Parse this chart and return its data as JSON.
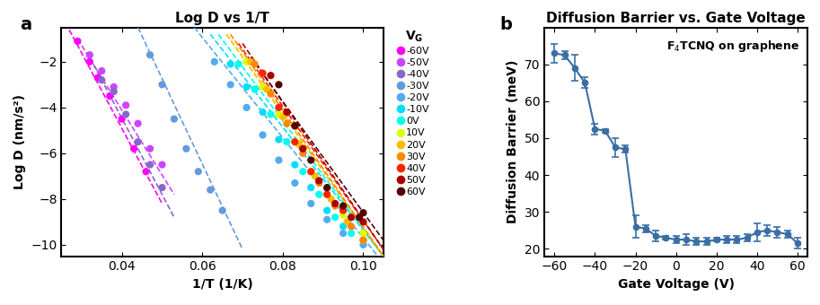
{
  "panel_a": {
    "title": "Log D vs 1/T",
    "xlabel": "1/T (1/K)",
    "ylabel": "Log D (nm/s²)",
    "xlim": [
      0.025,
      0.105
    ],
    "ylim": [
      -10.5,
      -0.5
    ],
    "xticks": [
      0.04,
      0.06,
      0.08,
      0.1
    ],
    "yticks": [
      -10,
      -8,
      -6,
      -4,
      -2
    ],
    "series": [
      {
        "label": "-60V",
        "color": "#FF00FF",
        "x": [
          0.029,
          0.032,
          0.034,
          0.037,
          0.04,
          0.043,
          0.046
        ],
        "y": [
          -1.1,
          -2.0,
          -2.7,
          -3.5,
          -4.5,
          -5.8,
          -6.8
        ],
        "fit_x": [
          0.026,
          0.05
        ],
        "fit_y": [
          -0.3,
          -8.2
        ]
      },
      {
        "label": "-50V",
        "color": "#CC44FF",
        "x": [
          0.032,
          0.035,
          0.038,
          0.041,
          0.044,
          0.047,
          0.05
        ],
        "y": [
          -1.7,
          -2.4,
          -3.1,
          -3.9,
          -4.7,
          -5.8,
          -6.5
        ],
        "fit_x": [
          0.029,
          0.053
        ],
        "fit_y": [
          -1.0,
          -7.8
        ]
      },
      {
        "label": "-40V",
        "color": "#8866CC",
        "x": [
          0.035,
          0.038,
          0.041,
          0.044,
          0.047,
          0.05
        ],
        "y": [
          -2.8,
          -3.3,
          -4.3,
          -5.5,
          -6.5,
          -7.5
        ],
        "fit_x": [
          0.032,
          0.053
        ],
        "fit_y": [
          -1.8,
          -8.8
        ]
      },
      {
        "label": "-30V",
        "color": "#6699DD",
        "x": [
          0.047,
          0.05,
          0.053,
          0.056,
          0.059,
          0.062,
          0.065
        ],
        "y": [
          -1.7,
          -3.0,
          -4.5,
          -5.8,
          -6.8,
          -7.6,
          -8.5
        ],
        "fit_x": [
          0.044,
          0.07
        ],
        "fit_y": [
          -0.5,
          -10.2
        ]
      },
      {
        "label": "-20V",
        "color": "#55AAEE",
        "x": [
          0.063,
          0.067,
          0.071,
          0.075,
          0.079,
          0.083,
          0.087,
          0.091,
          0.095,
          0.1
        ],
        "y": [
          -2.0,
          -3.0,
          -4.0,
          -5.2,
          -6.3,
          -7.3,
          -8.2,
          -8.9,
          -9.5,
          -10.0
        ],
        "fit_x": [
          0.058,
          0.105
        ],
        "fit_y": [
          -0.5,
          -10.8
        ]
      },
      {
        "label": "-10V",
        "color": "#00DDFF",
        "x": [
          0.067,
          0.071,
          0.075,
          0.079,
          0.083,
          0.087,
          0.091,
          0.095,
          0.1
        ],
        "y": [
          -2.1,
          -3.1,
          -4.2,
          -5.4,
          -6.5,
          -7.5,
          -8.5,
          -9.2,
          -9.8
        ],
        "fit_x": [
          0.062,
          0.105
        ],
        "fit_y": [
          -0.8,
          -10.5
        ]
      },
      {
        "label": "0V",
        "color": "#00FFEE",
        "x": [
          0.069,
          0.073,
          0.077,
          0.081,
          0.085,
          0.089,
          0.093,
          0.097,
          0.1
        ],
        "y": [
          -2.1,
          -3.2,
          -4.3,
          -5.5,
          -6.8,
          -7.8,
          -8.8,
          -9.5,
          -9.8
        ],
        "fit_x": [
          0.064,
          0.105
        ],
        "fit_y": [
          -0.8,
          -10.5
        ]
      },
      {
        "label": "10V",
        "color": "#DDFF00",
        "x": [
          0.071,
          0.075,
          0.079,
          0.083,
          0.087,
          0.091,
          0.095,
          0.1
        ],
        "y": [
          -2.0,
          -3.1,
          -4.3,
          -5.5,
          -6.8,
          -7.8,
          -8.7,
          -9.5
        ],
        "fit_x": [
          0.066,
          0.105
        ],
        "fit_y": [
          -0.8,
          -10.5
        ]
      },
      {
        "label": "20V",
        "color": "#FFBB00",
        "x": [
          0.072,
          0.076,
          0.08,
          0.084,
          0.088,
          0.092,
          0.096,
          0.1
        ],
        "y": [
          -2.0,
          -3.2,
          -4.4,
          -5.6,
          -7.0,
          -8.0,
          -9.0,
          -9.8
        ],
        "fit_x": [
          0.066,
          0.105
        ],
        "fit_y": [
          -0.8,
          -10.5
        ]
      },
      {
        "label": "30V",
        "color": "#FF8800",
        "x": [
          0.073,
          0.077,
          0.081,
          0.085,
          0.089,
          0.093,
          0.097,
          0.1
        ],
        "y": [
          -2.1,
          -3.4,
          -4.7,
          -6.0,
          -7.3,
          -8.3,
          -9.2,
          -9.8
        ],
        "fit_x": [
          0.067,
          0.105
        ],
        "fit_y": [
          -0.8,
          -10.5
        ]
      },
      {
        "label": "40V",
        "color": "#FF2200",
        "x": [
          0.075,
          0.079,
          0.083,
          0.087,
          0.091,
          0.095,
          0.099
        ],
        "y": [
          -2.5,
          -4.0,
          -5.5,
          -6.8,
          -7.8,
          -8.5,
          -8.8
        ],
        "fit_x": [
          0.069,
          0.105
        ],
        "fit_y": [
          -1.2,
          -10.2
        ]
      },
      {
        "label": "50V",
        "color": "#AA0000",
        "x": [
          0.077,
          0.081,
          0.085,
          0.089,
          0.093,
          0.097,
          0.1
        ],
        "y": [
          -2.6,
          -4.2,
          -5.8,
          -7.2,
          -8.2,
          -8.8,
          -9.0
        ],
        "fit_x": [
          0.07,
          0.105
        ],
        "fit_y": [
          -1.2,
          -10.2
        ]
      },
      {
        "label": "60V",
        "color": "#550000",
        "x": [
          0.079,
          0.083,
          0.087,
          0.091,
          0.095,
          0.099,
          0.1
        ],
        "y": [
          -3.0,
          -4.8,
          -6.3,
          -7.5,
          -8.3,
          -8.8,
          -8.6
        ],
        "fit_x": [
          0.072,
          0.105
        ],
        "fit_y": [
          -1.8,
          -9.8
        ]
      }
    ],
    "legend_colors": [
      "#FF00FF",
      "#CC44FF",
      "#8866CC",
      "#6699DD",
      "#55AAEE",
      "#00DDFF",
      "#00FFEE",
      "#DDFF00",
      "#FFBB00",
      "#FF8800",
      "#FF2200",
      "#AA0000",
      "#550000"
    ],
    "legend_labels": [
      "-60V",
      "-50V",
      "-40V",
      "-30V",
      "-20V",
      "-10V",
      "0V",
      "10V",
      "20V",
      "30V",
      "40V",
      "50V",
      "60V"
    ]
  },
  "panel_b": {
    "title": "Diffusion Barrier vs. Gate Voltage",
    "xlabel": "Gate Voltage (V)",
    "ylabel": "Diffusion Barrier (meV)",
    "annotation": "F₄TCNQ on graphene",
    "xlim": [
      -65,
      65
    ],
    "ylim": [
      18,
      80
    ],
    "xticks": [
      -60,
      -40,
      -20,
      0,
      20,
      40,
      60
    ],
    "yticks": [
      20,
      30,
      40,
      50,
      60,
      70
    ],
    "color": "#3A6EA5",
    "gate_voltages": [
      -60,
      -55,
      -50,
      -45,
      -40,
      -35,
      -30,
      -25,
      -20,
      -15,
      -10,
      -5,
      0,
      5,
      10,
      15,
      20,
      25,
      30,
      35,
      40,
      45,
      50,
      55,
      60
    ],
    "barriers": [
      73.0,
      72.5,
      69.0,
      65.0,
      52.5,
      52.0,
      47.5,
      47.0,
      26.0,
      25.5,
      23.5,
      23.0,
      22.5,
      22.5,
      22.0,
      22.0,
      22.5,
      22.5,
      22.5,
      23.0,
      24.5,
      25.0,
      24.5,
      24.0,
      21.5
    ],
    "errors": [
      2.5,
      1.0,
      3.5,
      1.5,
      1.5,
      0.5,
      2.5,
      1.0,
      3.0,
      1.0,
      1.5,
      0.5,
      1.0,
      1.5,
      1.0,
      1.0,
      0.5,
      1.0,
      1.0,
      1.0,
      2.5,
      1.5,
      1.5,
      1.0,
      1.5
    ]
  }
}
